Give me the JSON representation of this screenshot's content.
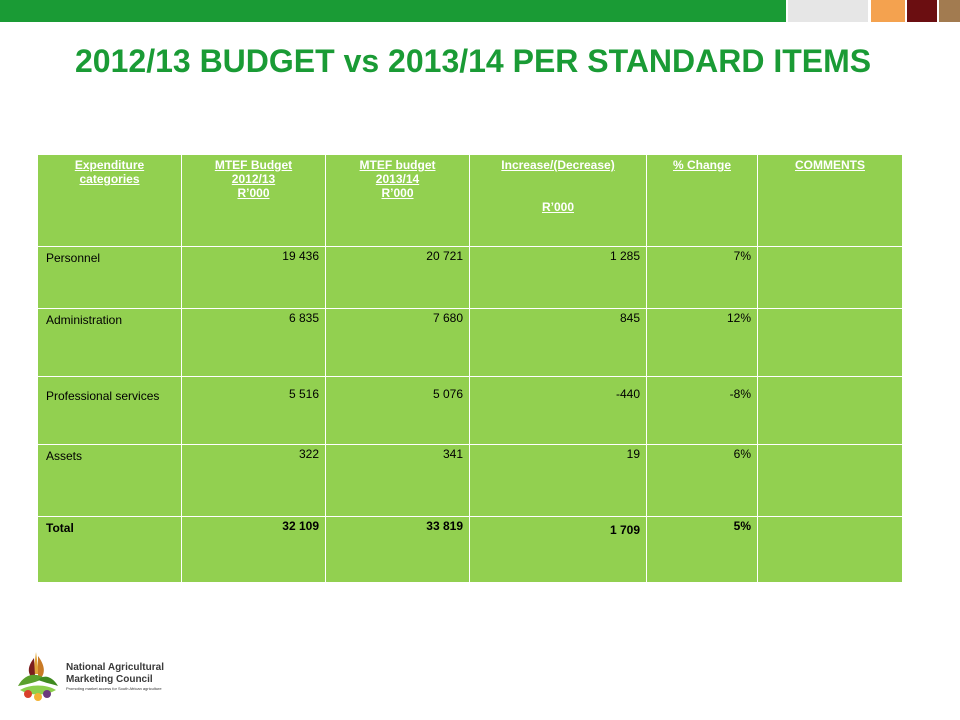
{
  "colors": {
    "topbar_green": "#1a9b35",
    "topbar_light": "#e6e6e6",
    "topbar_orange": "#f4a24f",
    "topbar_maroon": "#6b0e11",
    "topbar_tan": "#a27b50",
    "title": "#1a9b35",
    "table_fill": "#92d050"
  },
  "slide": {
    "title": "2012/13 BUDGET vs 2013/14 PER STANDARD ITEMS"
  },
  "table": {
    "headers": [
      [
        "Expenditure",
        "categories"
      ],
      [
        "MTEF Budget",
        "2012/13",
        "R’000"
      ],
      [
        "MTEF budget",
        "2013/14",
        "R’000"
      ],
      [
        "Increase/(Decrease)",
        "",
        "R’000"
      ],
      [
        "% Change"
      ],
      [
        "COMMENTS"
      ]
    ],
    "rows": [
      {
        "category": "Personnel",
        "budget_2012": "19 436",
        "budget_2013": "20 721",
        "change": "1 285",
        "pct": "7%",
        "comments": ""
      },
      {
        "category": "Administration",
        "budget_2012": "6 835",
        "budget_2013": "7 680",
        "change": "845",
        "pct": "12%",
        "comments": ""
      },
      {
        "category": "Professional services",
        "budget_2012": "5 516",
        "budget_2013": "5 076",
        "change": "-440",
        "pct": "-8%",
        "comments": ""
      },
      {
        "category": "Assets",
        "budget_2012": "322",
        "budget_2013": "341",
        "change": "19",
        "pct": "6%",
        "comments": ""
      },
      {
        "category": "Total",
        "budget_2012": "32 109",
        "budget_2013": "33 819",
        "change": "1 709",
        "pct": "5%",
        "comments": ""
      }
    ]
  },
  "logo": {
    "line1": "National Agricultural",
    "line2": "Marketing Council",
    "tagline": "Promoting market access for South African agriculture"
  }
}
